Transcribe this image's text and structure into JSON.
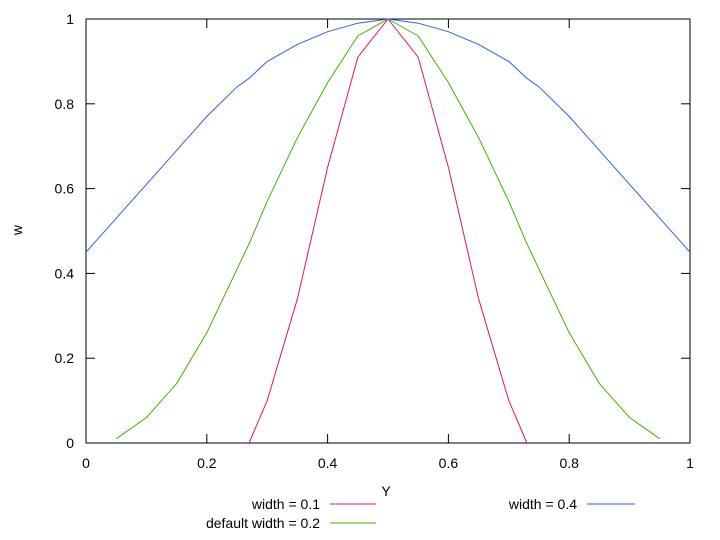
{
  "chart_data": {
    "type": "line",
    "title": "",
    "xlabel": "Y",
    "ylabel": "w",
    "xlim": [
      0,
      1
    ],
    "ylim": [
      0,
      1
    ],
    "xticks": [
      "0",
      "0.2",
      "0.4",
      "0.6",
      "0.8",
      "1"
    ],
    "yticks": [
      "0",
      "0.2",
      "0.4",
      "0.6",
      "0.8",
      "1"
    ],
    "grid": false,
    "legend_position": "bottom",
    "x": [
      0,
      0.05,
      0.1,
      0.15,
      0.2,
      0.25,
      0.27,
      0.3,
      0.35,
      0.4,
      0.45,
      0.5,
      0.55,
      0.6,
      0.65,
      0.7,
      0.73,
      0.75,
      0.8,
      0.85,
      0.9,
      0.95,
      1
    ],
    "series": [
      {
        "name": "width = 0.1",
        "color": "#e8174f",
        "values": [
          null,
          null,
          null,
          null,
          null,
          null,
          0,
          0.1,
          0.34,
          0.65,
          0.91,
          1,
          0.91,
          0.65,
          0.34,
          0.1,
          0,
          null,
          null,
          null,
          null,
          null,
          null
        ]
      },
      {
        "name": "default width = 0.2",
        "color": "#3cb300",
        "values": [
          null,
          0.01,
          0.06,
          0.14,
          0.26,
          0.41,
          0.47,
          0.57,
          0.72,
          0.85,
          0.96,
          1,
          0.96,
          0.85,
          0.72,
          0.57,
          0.47,
          0.41,
          0.26,
          0.14,
          0.06,
          0.01,
          null
        ]
      },
      {
        "name": "width = 0.4",
        "color": "#2d5fe8",
        "values": [
          0.45,
          0.53,
          0.61,
          0.69,
          0.77,
          0.84,
          0.86,
          0.9,
          0.94,
          0.97,
          0.99,
          1,
          0.99,
          0.97,
          0.94,
          0.9,
          0.86,
          0.84,
          0.77,
          0.69,
          0.61,
          0.53,
          0.45
        ]
      }
    ]
  }
}
